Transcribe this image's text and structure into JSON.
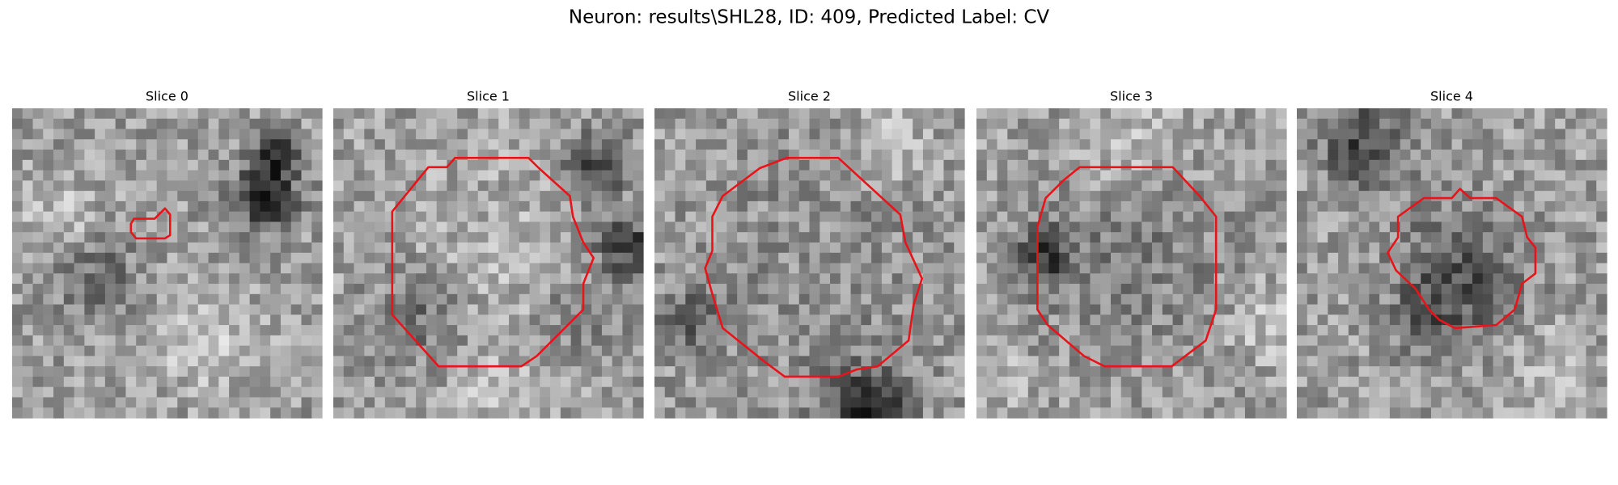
{
  "title": "Neuron: results\\SHL28, ID: 409, Predicted Label: CV",
  "panels": [
    {
      "title": "Slice 0"
    },
    {
      "title": "Slice 1"
    },
    {
      "title": "Slice 2"
    },
    {
      "title": "Slice 3"
    },
    {
      "title": "Slice 4"
    }
  ]
}
